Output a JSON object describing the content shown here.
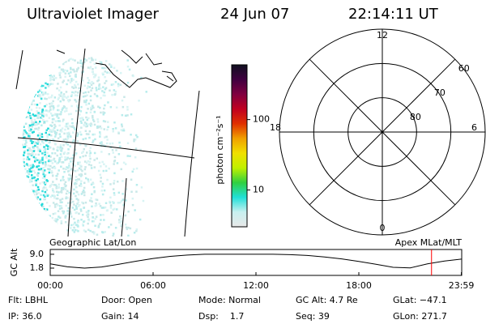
{
  "header": {
    "instrument": "Ultraviolet Imager",
    "date": "24 Jun 07",
    "time": "22:14:11 UT"
  },
  "colorbar": {
    "label": "photon cm⁻²s⁻¹",
    "scale": "log",
    "clim": [
      3,
      600
    ],
    "ticks": [
      10,
      100
    ],
    "colors": [
      "#e8e8e8",
      "#c8f0f0",
      "#20e0d8",
      "#30d040",
      "#c0f000",
      "#f0e000",
      "#f0a000",
      "#e03000",
      "#c00020",
      "#800040",
      "#400040",
      "#101020"
    ]
  },
  "polar": {
    "rlim": [
      90,
      60
    ],
    "rings": [
      80,
      70,
      60
    ],
    "mlt_ticks": [
      12,
      18,
      6,
      0
    ]
  },
  "chart_data": {
    "type": "line",
    "left_label": "Geographic Lat/Lon",
    "right_label": "Apex MLat/MLT",
    "ylabel": "GC Alt",
    "x": [
      0,
      1,
      2,
      3,
      4,
      5,
      6,
      7,
      8,
      9,
      10,
      11,
      12,
      13,
      14,
      15,
      16,
      17,
      18,
      19,
      20,
      21,
      22,
      23,
      23.98
    ],
    "series": [
      {
        "color": "#000000",
        "values": [
          4.0,
          2.5,
          1.8,
          2.4,
          3.8,
          5.4,
          6.8,
          7.9,
          8.6,
          9.0,
          9.0,
          9.0,
          9.0,
          9.0,
          8.8,
          8.4,
          7.6,
          6.6,
          5.3,
          3.8,
          2.2,
          1.9,
          4.0,
          5.5,
          6.5
        ]
      }
    ],
    "xlim": [
      0,
      24
    ],
    "xticks": [
      {
        "value": 0,
        "label": "00:00"
      },
      {
        "value": 6,
        "label": "06:00"
      },
      {
        "value": 12,
        "label": "12:00"
      },
      {
        "value": 18,
        "label": "18:00"
      },
      {
        "value": 23.98,
        "label": "23:59"
      }
    ],
    "ylim": [
      -2,
      11.5
    ],
    "yticks": [
      {
        "value": 9,
        "label": "9.0"
      },
      1.8
    ],
    "marker": {
      "x": 22.24,
      "color": "#ff0000"
    }
  },
  "info": {
    "rows": [
      [
        "Flt: LBHL",
        "Door: Open",
        "Mode: Normal",
        "GC Alt: 4.7 Re",
        "GLat: −47.1"
      ],
      [
        "IP: 36.0",
        "Gain: 14",
        "Dsp:    1.7",
        "Seq: 39",
        "GLon: 271.7"
      ]
    ]
  }
}
